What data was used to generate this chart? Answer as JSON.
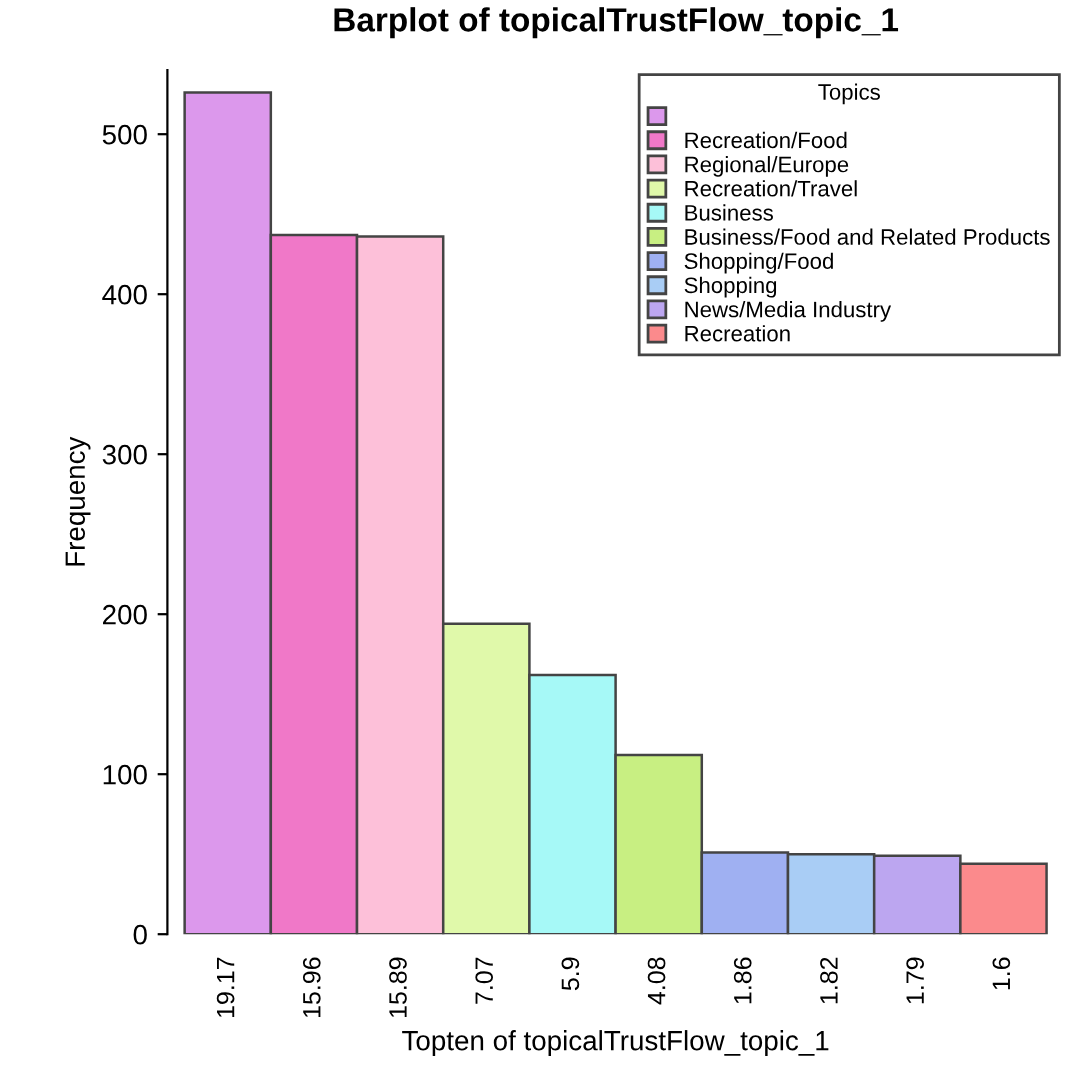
{
  "chart_data": {
    "type": "bar",
    "title": "Barplot of topicalTrustFlow_topic_1",
    "xlabel": "Topten of topicalTrustFlow_topic_1",
    "ylabel": "Frequency",
    "categories": [
      "19.17",
      "15.96",
      "15.89",
      "7.07",
      "5.9",
      "4.08",
      "1.86",
      "1.82",
      "1.79",
      "1.6"
    ],
    "series": [
      {
        "color": "#dc98ec",
        "values": [
          526,
          null,
          null,
          null,
          null,
          null,
          null,
          null,
          null,
          null
        ]
      },
      {
        "name": "Recreation/Food",
        "color": "#f078c8",
        "values": [
          null,
          437,
          null,
          null,
          null,
          null,
          null,
          null,
          null,
          null
        ]
      },
      {
        "name": "Regional/Europe",
        "color": "#fdc0d9",
        "values": [
          null,
          null,
          436,
          null,
          null,
          null,
          null,
          null,
          null,
          null
        ]
      },
      {
        "name": "Recreation/Travel",
        "color": "#e0f9aa",
        "values": [
          null,
          null,
          null,
          194,
          null,
          null,
          null,
          null,
          null,
          null
        ]
      },
      {
        "name": "Business",
        "color": "#a6f9f7",
        "values": [
          null,
          null,
          null,
          null,
          162,
          null,
          null,
          null,
          null,
          null
        ]
      },
      {
        "name": "Business/Food and Related Products",
        "color": "#c8ef82",
        "values": [
          null,
          null,
          null,
          null,
          null,
          112,
          null,
          null,
          null,
          null
        ]
      },
      {
        "name": "Shopping/Food",
        "color": "#9fb0f2",
        "values": [
          null,
          null,
          null,
          null,
          null,
          null,
          51,
          null,
          null,
          null
        ]
      },
      {
        "name": "Shopping",
        "color": "#a9cdf5",
        "values": [
          null,
          null,
          null,
          null,
          null,
          null,
          null,
          50,
          null,
          null
        ]
      },
      {
        "name": "News/Media Industry",
        "color": "#bca6f0",
        "values": [
          null,
          null,
          null,
          null,
          null,
          null,
          null,
          null,
          49,
          null
        ]
      },
      {
        "name": "Recreation",
        "color": "#fb8a8c",
        "values": [
          null,
          null,
          null,
          null,
          null,
          null,
          null,
          null,
          null,
          44
        ]
      }
    ],
    "legend_title": "Topics",
    "legend": "top right",
    "ylim": [
      0,
      540
    ],
    "yticks": [
      0,
      100,
      200,
      300,
      400,
      500
    ],
    "grid": false
  }
}
